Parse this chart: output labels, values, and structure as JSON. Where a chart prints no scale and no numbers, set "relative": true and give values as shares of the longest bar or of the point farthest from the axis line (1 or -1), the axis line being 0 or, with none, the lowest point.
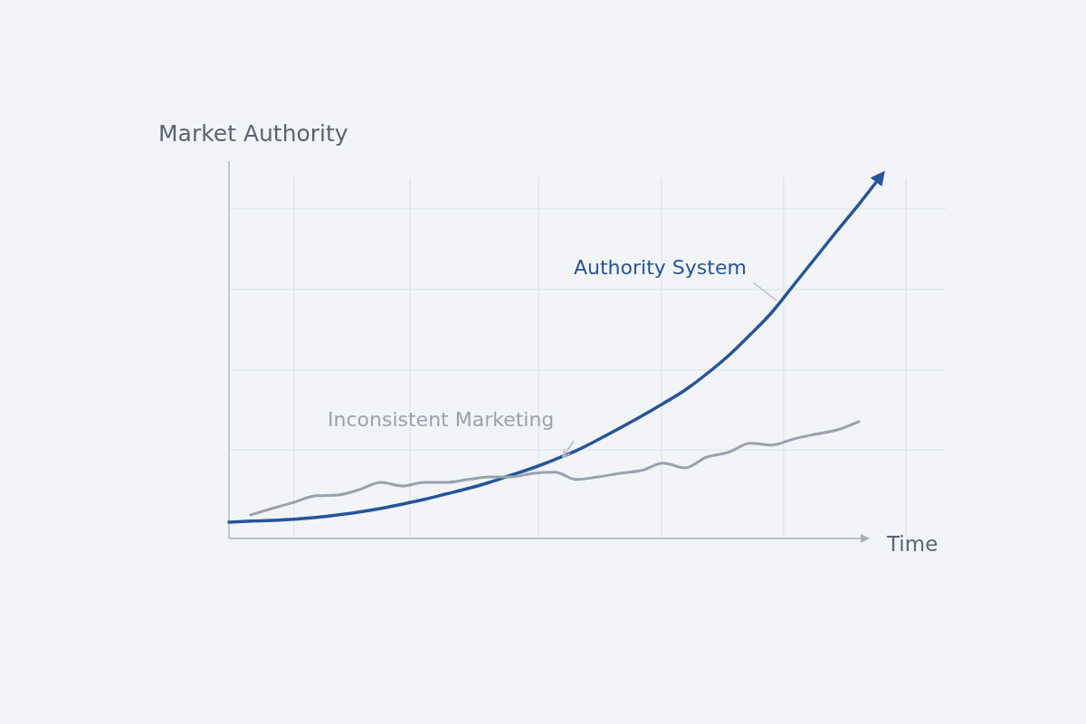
{
  "chart_data": {
    "type": "line",
    "relative": true,
    "xlabel": "Time",
    "ylabel": "Market Authority",
    "grid": true,
    "categories": [
      null,
      null,
      null,
      null,
      null,
      null,
      null,
      null,
      null,
      null,
      null,
      null,
      null,
      null,
      null,
      null,
      null,
      null,
      null,
      null,
      null,
      null,
      null,
      null,
      null,
      null,
      null,
      null,
      null,
      null,
      null
    ],
    "series": [
      {
        "name": "Authority System",
        "color": "#24559a",
        "values": [
          0.045,
          0.048,
          0.05,
          0.053,
          0.058,
          0.065,
          0.073,
          0.083,
          0.095,
          0.108,
          0.123,
          0.138,
          0.155,
          0.175,
          0.195,
          0.218,
          0.243,
          0.273,
          0.305,
          0.338,
          0.373,
          0.41,
          0.455,
          0.505,
          0.563,
          0.625,
          0.7,
          0.775,
          0.85,
          0.923,
          1.0
        ]
      },
      {
        "name": "Inconsistent Marketing",
        "color": "#9aa2ae",
        "values": [
          null,
          0.065,
          0.083,
          0.1,
          0.118,
          0.12,
          0.135,
          0.155,
          0.145,
          0.155,
          0.155,
          0.163,
          0.17,
          0.17,
          0.18,
          0.183,
          0.163,
          0.17,
          0.18,
          0.188,
          0.208,
          0.195,
          0.225,
          0.238,
          0.263,
          0.258,
          0.275,
          0.288,
          0.3,
          0.323,
          null
        ]
      }
    ]
  }
}
